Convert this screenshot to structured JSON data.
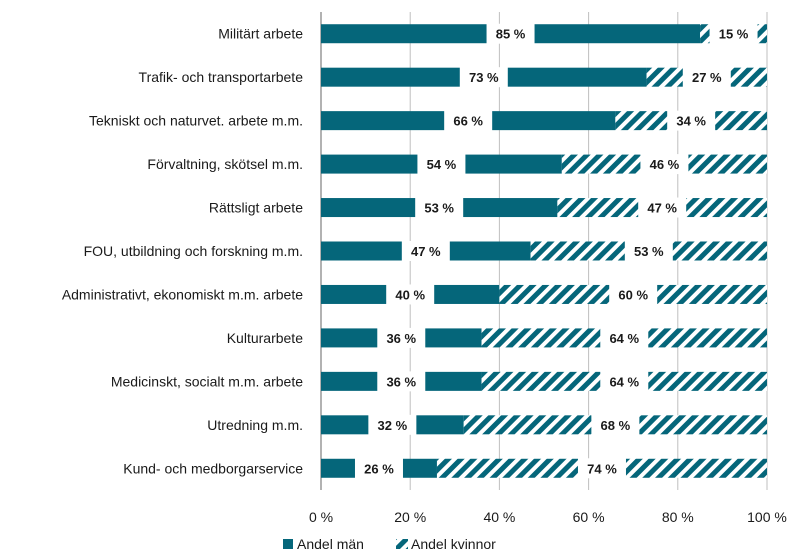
{
  "chart_data": {
    "type": "bar",
    "orientation": "horizontal",
    "stacked": true,
    "categories": [
      "Militärt arbete",
      "Trafik- och transportarbete",
      "Tekniskt och naturvet. arbete m.m.",
      "Förvaltning, skötsel m.m.",
      "Rättsligt arbete",
      "FOU, utbildning och forskning m.m.",
      "Administrativt, ekonomiskt m.m. arbete",
      "Kulturarbete",
      "Medicinskt, socialt m.m. arbete",
      "Utredning m.m.",
      "Kund- och medborgarservice"
    ],
    "series": [
      {
        "name": "Andel män",
        "values": [
          85,
          73,
          66,
          54,
          53,
          47,
          40,
          36,
          36,
          32,
          26
        ],
        "color": "#05667a",
        "pattern": "solid"
      },
      {
        "name": "Andel kvinnor",
        "values": [
          15,
          27,
          34,
          46,
          47,
          53,
          60,
          64,
          64,
          68,
          74
        ],
        "color": "#05667a",
        "pattern": "diagonal-stripes"
      }
    ],
    "data_labels": {
      "men": [
        "85 %",
        "73 %",
        "66 %",
        "54 %",
        "53 %",
        "47 %",
        "40 %",
        "36 %",
        "36 %",
        "32 %",
        "26 %"
      ],
      "women": [
        "15 %",
        "27 %",
        "34 %",
        "46 %",
        "47 %",
        "53 %",
        "60 %",
        "64 %",
        "64 %",
        "68 %",
        "74 %"
      ]
    },
    "x_ticks": [
      "0 %",
      "20 %",
      "40 %",
      "60 %",
      "80 %",
      "100 %"
    ],
    "xlim": [
      0,
      100
    ],
    "gridlines": "vertical",
    "legend_position": "bottom",
    "title": "",
    "xlabel": "",
    "ylabel": ""
  }
}
